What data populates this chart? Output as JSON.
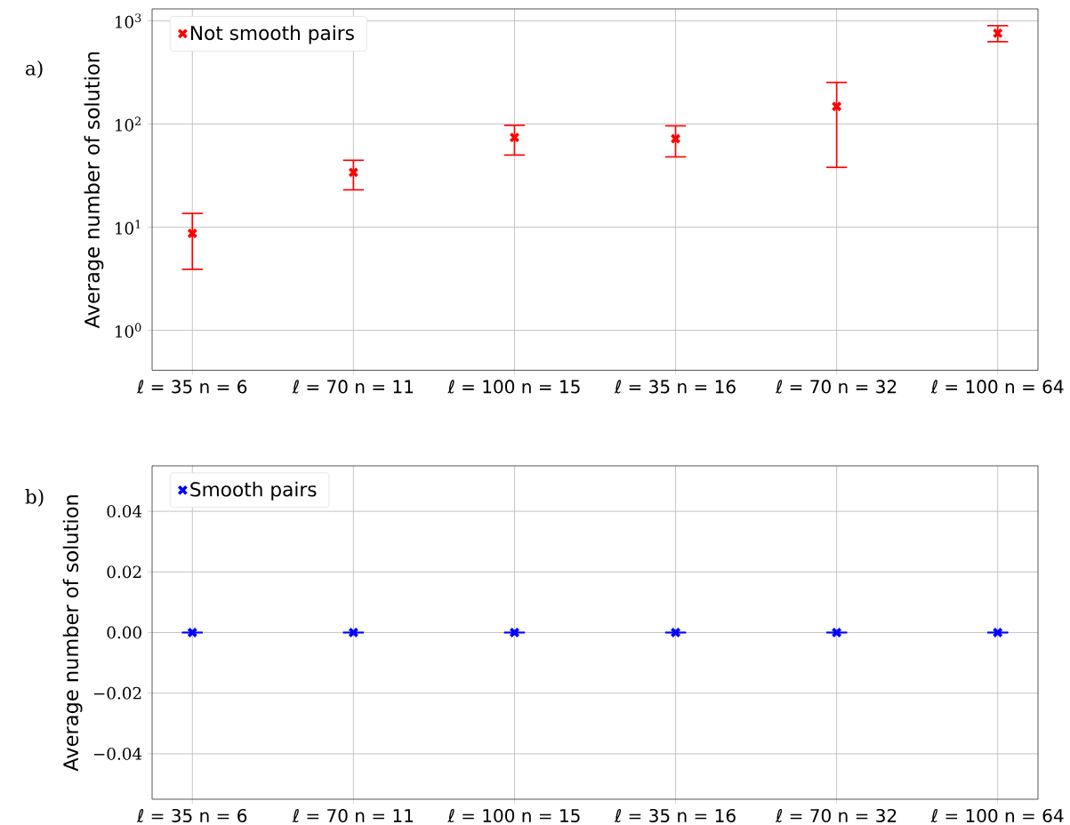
{
  "chart_data": [
    {
      "type": "scatter",
      "annotations": [
        "a)"
      ],
      "ylabel": "Average number of solution",
      "categories": [
        "ℓ = 35 n = 6",
        "ℓ = 70 n = 11",
        "ℓ = 100 n = 15",
        "ℓ = 35 n = 16",
        "ℓ = 70 n = 32",
        "ℓ = 100 n = 64"
      ],
      "series": [
        {
          "name": "Not smooth pairs",
          "color": "#ff0000",
          "values": [
            8.7,
            34,
            74,
            72,
            148,
            759
          ],
          "errors": [
            [
              3.9,
              13.6
            ],
            [
              23,
              44.5
            ],
            [
              50,
              97
            ],
            [
              48,
              96
            ],
            [
              38,
              253
            ],
            [
              628,
              898
            ]
          ]
        }
      ],
      "log": "y",
      "ylim": [
        0.41,
        1306
      ],
      "yticks": [
        {
          "value": 1,
          "label": "10$^{0}$"
        },
        {
          "value": 10,
          "label": "10$^{1}$"
        },
        {
          "value": 100,
          "label": "10$^{2}$"
        },
        {
          "value": 1000,
          "label": "10$^{3}$"
        }
      ],
      "grid": true,
      "legend": "top left",
      "marker": "cross"
    },
    {
      "type": "scatter",
      "annotations": [
        "b)"
      ],
      "ylabel": "Average number of solution",
      "categories": [
        "ℓ = 35 n = 6",
        "ℓ = 70 n = 11",
        "ℓ = 100 n = 15",
        "ℓ = 35 n = 16",
        "ℓ = 70 n = 32",
        "ℓ = 100 n = 64"
      ],
      "series": [
        {
          "name": "Smooth pairs",
          "color": "#0000ff",
          "values": [
            0,
            0,
            0,
            0,
            0,
            0
          ],
          "errors": [
            0,
            0,
            0,
            0,
            0,
            0
          ]
        }
      ],
      "ylim": [
        -0.055,
        0.055
      ],
      "yticks": [
        {
          "value": -0.04,
          "label": "−0.04"
        },
        {
          "value": -0.02,
          "label": "−0.02"
        },
        {
          "value": 0,
          "label": "0.00"
        },
        {
          "value": 0.02,
          "label": "0.02"
        },
        {
          "value": 0.04,
          "label": "0.04"
        }
      ],
      "grid": true,
      "legend": "top left",
      "marker": "cross"
    }
  ]
}
